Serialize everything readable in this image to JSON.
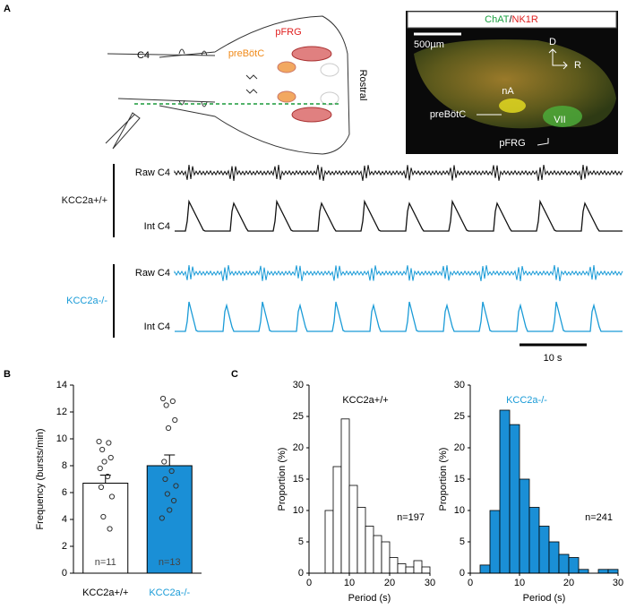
{
  "panel_labels": [
    "A",
    "B",
    "C"
  ],
  "panel_a": {
    "schematic": {
      "pfrg": "pFRG",
      "c4": "C4",
      "prebotc": "preBötC",
      "rostral": "Rostral"
    },
    "micrograph": {
      "title_chat": "ChAT",
      "title_sep": "/",
      "title_nk1r": "NK1R",
      "scale": "500µm",
      "d": "D",
      "r": "R",
      "na": "nA",
      "prebotc": "preBötC",
      "vii": "VII",
      "pfrg": "pFRG"
    },
    "traces": [
      {
        "genotype": "KCC2a+/+",
        "color": "#111111",
        "raw": "Raw C4",
        "int": "Int C4"
      },
      {
        "genotype": "KCC2a-/-",
        "color": "#1a9bd7",
        "raw": "Raw C4",
        "int": "Int C4"
      }
    ],
    "scale_bar": "10 s"
  },
  "chart_data": [
    {
      "type": "bar",
      "ylabel": "Frequency (bursts/min)",
      "categories": [
        "KCC2a+/+",
        "KCC2a-/-"
      ],
      "category_colors": [
        "#000000",
        "#1a9bd7"
      ],
      "values": [
        6.7,
        8.0
      ],
      "errors": [
        0.6,
        0.8
      ],
      "colors": [
        "#ffffff",
        "#1a8fd6"
      ],
      "points": [
        [
          9.8,
          9.7,
          9.2,
          8.6,
          8.3,
          7.8,
          7.2,
          6.4,
          5.7,
          4.2,
          3.3
        ],
        [
          13.0,
          12.8,
          12.5,
          11.4,
          10.8,
          8.3,
          7.6,
          7.0,
          6.5,
          5.9,
          5.4,
          4.7,
          4.1
        ]
      ],
      "n_labels": [
        "n=11",
        "n=13"
      ],
      "ylim": [
        0,
        14
      ],
      "yticks": [
        0,
        2,
        4,
        6,
        8,
        10,
        12,
        14
      ]
    },
    {
      "type": "histogram",
      "title": "KCC2a+/+",
      "title_color": "#000000",
      "annotation": "n=197",
      "bins": [
        4,
        6,
        8,
        10,
        12,
        14,
        16,
        18,
        20,
        22,
        24,
        26,
        28,
        30
      ],
      "counts": [
        10,
        17,
        24.6,
        14,
        10.5,
        7.5,
        6,
        5,
        2.5,
        1.5,
        1,
        2,
        1
      ],
      "color": "#ffffff",
      "xlabel": "Period (s)",
      "ylabel": "Proportion (%)",
      "xlim": [
        0,
        30
      ],
      "ylim": [
        0,
        30
      ],
      "xticks": [
        0,
        10,
        20,
        30
      ],
      "yticks": [
        0,
        5,
        10,
        15,
        20,
        25,
        30
      ]
    },
    {
      "type": "histogram",
      "title": "KCC2a-/-",
      "title_color": "#1a9bd7",
      "annotation": "n=241",
      "bins": [
        2,
        4,
        6,
        8,
        10,
        12,
        14,
        16,
        18,
        20,
        22,
        24,
        26,
        28,
        30
      ],
      "counts": [
        1.3,
        10,
        26,
        23.7,
        15,
        10.5,
        7.5,
        5,
        3,
        2.5,
        0.6,
        0,
        0.6,
        0.6
      ],
      "color": "#1a8fd6",
      "xlabel": "Period (s)",
      "ylabel": "Proportion (%)",
      "xlim": [
        0,
        30
      ],
      "ylim": [
        0,
        30
      ],
      "xticks": [
        0,
        10,
        20,
        30
      ],
      "yticks": [
        0,
        5,
        10,
        15,
        20,
        25,
        30
      ]
    }
  ]
}
